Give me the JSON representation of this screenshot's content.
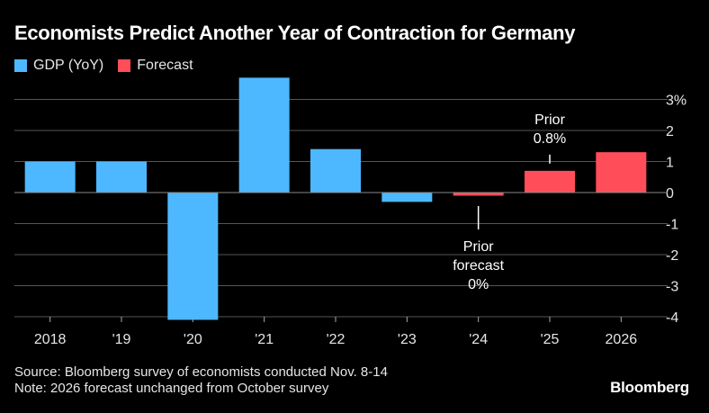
{
  "chart_data": {
    "type": "bar",
    "title": "Economists Predict Another Year of Contraction for Germany",
    "categories": [
      "2018",
      "'19",
      "'20",
      "'21",
      "'22",
      "'23",
      "'24",
      "'25",
      "2026"
    ],
    "series": [
      {
        "name": "GDP (YoY)",
        "color": "#4db8ff",
        "values": [
          1.0,
          1.0,
          -4.1,
          3.7,
          1.4,
          -0.3,
          null,
          null,
          null
        ]
      },
      {
        "name": "Forecast",
        "color": "#ff4d5a",
        "values": [
          null,
          null,
          null,
          null,
          null,
          null,
          -0.1,
          0.7,
          1.3
        ]
      }
    ],
    "ylim": [
      -4,
      3.5
    ],
    "yticks": [
      3,
      2,
      1,
      0,
      -1,
      -2,
      -3,
      -4
    ],
    "ytick_labels": [
      "3%",
      "2",
      "1",
      "0",
      "-1",
      "-2",
      "-3",
      "-4"
    ],
    "annotations": [
      {
        "category_index": 7,
        "lines": [
          "Prior",
          "0.8%"
        ],
        "position": "above",
        "value": 0.8
      },
      {
        "category_index": 6,
        "lines": [
          "Prior",
          "forecast",
          "0%"
        ],
        "position": "below",
        "value": 0
      }
    ],
    "xlabel": "",
    "ylabel": ""
  },
  "legend": [
    {
      "label": "GDP (YoY)",
      "color": "#4db8ff"
    },
    {
      "label": "Forecast",
      "color": "#ff4d5a"
    }
  ],
  "footer": {
    "source": "Source: Bloomberg survey of economists conducted Nov. 8-14",
    "note": "Note: 2026 forecast unchanged from October survey"
  },
  "brand": "Bloomberg"
}
